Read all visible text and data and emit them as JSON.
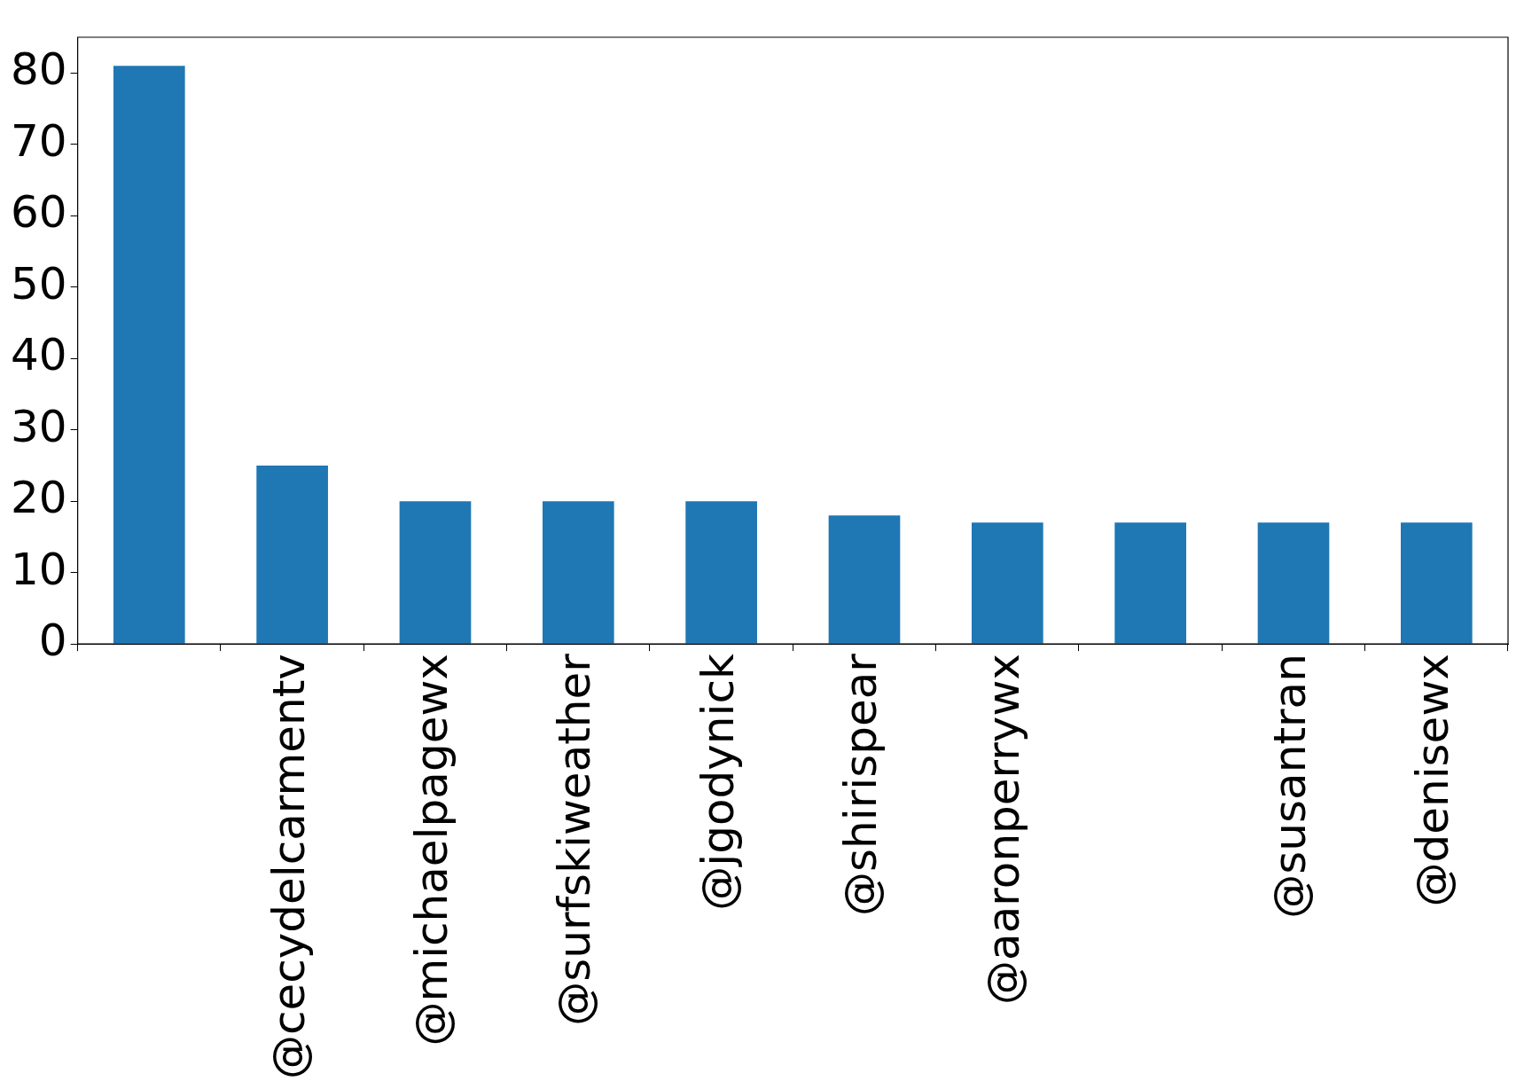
{
  "chart_data": {
    "type": "bar",
    "categories": [
      null,
      "@cecydelcarmentv",
      "@michaelpagewx",
      "@surfskiweather",
      "@jgodynick",
      "@shirispear",
      "@aaronperrywx",
      null,
      "@susantran",
      "@denisewx"
    ],
    "values": [
      81,
      25,
      20,
      20,
      20,
      18,
      17,
      17,
      17,
      17
    ],
    "color": "#1f77b4",
    "ylim": [
      0,
      85
    ],
    "yticks": [
      0,
      10,
      20,
      30,
      40,
      50,
      60,
      70,
      80
    ],
    "grid": false,
    "legend": false
  }
}
